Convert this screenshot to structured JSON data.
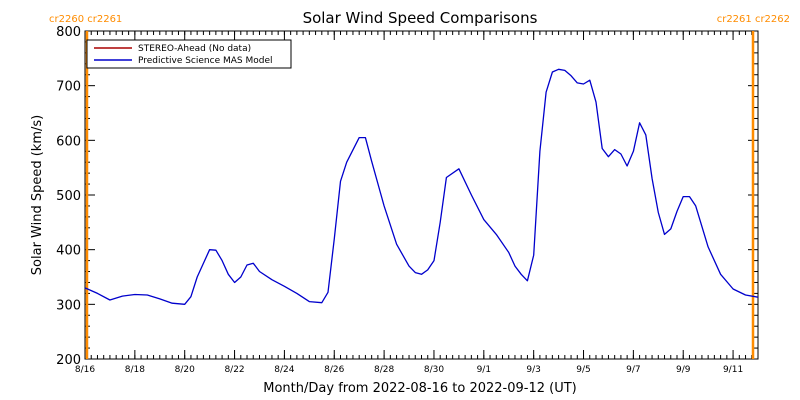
{
  "chart_data": {
    "type": "line",
    "title": "Solar Wind Speed Comparisons",
    "xlabel": "Month/Day from 2022-08-16 to 2022-09-12 (UT)",
    "ylabel": "Solar Wind Speed (km/s)",
    "ylim": [
      200,
      800
    ],
    "y_ticks": [
      200,
      300,
      400,
      500,
      600,
      700,
      800
    ],
    "xlim": [
      "2022-08-16",
      "2022-09-12"
    ],
    "x_tick_labels": [
      "8/16",
      "8/18",
      "8/20",
      "8/22",
      "8/24",
      "8/26",
      "8/28",
      "8/30",
      "9/1",
      "9/3",
      "9/5",
      "9/7",
      "9/9",
      "9/11"
    ],
    "x_tick_dates": [
      "2022-08-16",
      "2022-08-18",
      "2022-08-20",
      "2022-08-22",
      "2022-08-24",
      "2022-08-26",
      "2022-08-28",
      "2022-08-30",
      "2022-09-01",
      "2022-09-03",
      "2022-09-05",
      "2022-09-07",
      "2022-09-09",
      "2022-09-11"
    ],
    "carrington_labels": [
      {
        "text": "cr2260 cr2261",
        "position": "top-left"
      },
      {
        "text": "cr2261 cr2262",
        "position": "top-right"
      }
    ],
    "carrington_line_dates": [
      "2022-08-16",
      "2022-09-12"
    ],
    "legend": {
      "position": "top-left"
    },
    "series": [
      {
        "name": "STEREO-Ahead (No data)",
        "color": "#aa0000",
        "x": [],
        "values": []
      },
      {
        "name": "Predictive Science MAS Model",
        "color": "#0000cc",
        "x": [
          "2022-08-16T00",
          "2022-08-16T12",
          "2022-08-17T00",
          "2022-08-17T12",
          "2022-08-18T00",
          "2022-08-18T12",
          "2022-08-19T00",
          "2022-08-19T12",
          "2022-08-20T00",
          "2022-08-20T06",
          "2022-08-20T12",
          "2022-08-21T00",
          "2022-08-21T06",
          "2022-08-21T12",
          "2022-08-21T18",
          "2022-08-22T00",
          "2022-08-22T06",
          "2022-08-22T12",
          "2022-08-22T18",
          "2022-08-23T00",
          "2022-08-23T12",
          "2022-08-24T00",
          "2022-08-24T12",
          "2022-08-25T00",
          "2022-08-25T12",
          "2022-08-25T18",
          "2022-08-26T00",
          "2022-08-26T06",
          "2022-08-26T12",
          "2022-08-27T00",
          "2022-08-27T06",
          "2022-08-27T12",
          "2022-08-28T00",
          "2022-08-28T12",
          "2022-08-29T00",
          "2022-08-29T06",
          "2022-08-29T12",
          "2022-08-29T18",
          "2022-08-30T00",
          "2022-08-30T06",
          "2022-08-30T12",
          "2022-08-31T00",
          "2022-08-31T12",
          "2022-09-01T00",
          "2022-09-01T12",
          "2022-09-02T00",
          "2022-09-02T06",
          "2022-09-02T12",
          "2022-09-02T18",
          "2022-09-03T00",
          "2022-09-03T06",
          "2022-09-03T12",
          "2022-09-03T18",
          "2022-09-04T00",
          "2022-09-04T06",
          "2022-09-04T12",
          "2022-09-04T18",
          "2022-09-05T00",
          "2022-09-05T06",
          "2022-09-05T12",
          "2022-09-05T18",
          "2022-09-06T00",
          "2022-09-06T06",
          "2022-09-06T12",
          "2022-09-06T18",
          "2022-09-07T00",
          "2022-09-07T06",
          "2022-09-07T12",
          "2022-09-07T18",
          "2022-09-08T00",
          "2022-09-08T06",
          "2022-09-08T12",
          "2022-09-08T18",
          "2022-09-09T00",
          "2022-09-09T06",
          "2022-09-09T12",
          "2022-09-10T00",
          "2022-09-10T12",
          "2022-09-11T00",
          "2022-09-11T12",
          "2022-09-12T00"
        ],
        "values": [
          330,
          320,
          308,
          315,
          318,
          317,
          310,
          302,
          300,
          314,
          350,
          400,
          399,
          380,
          355,
          340,
          350,
          372,
          375,
          360,
          345,
          333,
          320,
          305,
          303,
          322,
          420,
          525,
          560,
          605,
          605,
          562,
          480,
          410,
          370,
          358,
          355,
          363,
          380,
          450,
          532,
          548,
          500,
          455,
          428,
          395,
          370,
          355,
          343,
          390,
          580,
          688,
          725,
          730,
          728,
          718,
          705,
          703,
          710,
          670,
          585,
          570,
          583,
          575,
          553,
          580,
          632,
          610,
          530,
          468,
          428,
          438,
          470,
          497,
          497,
          480,
          405,
          355,
          328,
          317,
          313
        ]
      }
    ]
  }
}
